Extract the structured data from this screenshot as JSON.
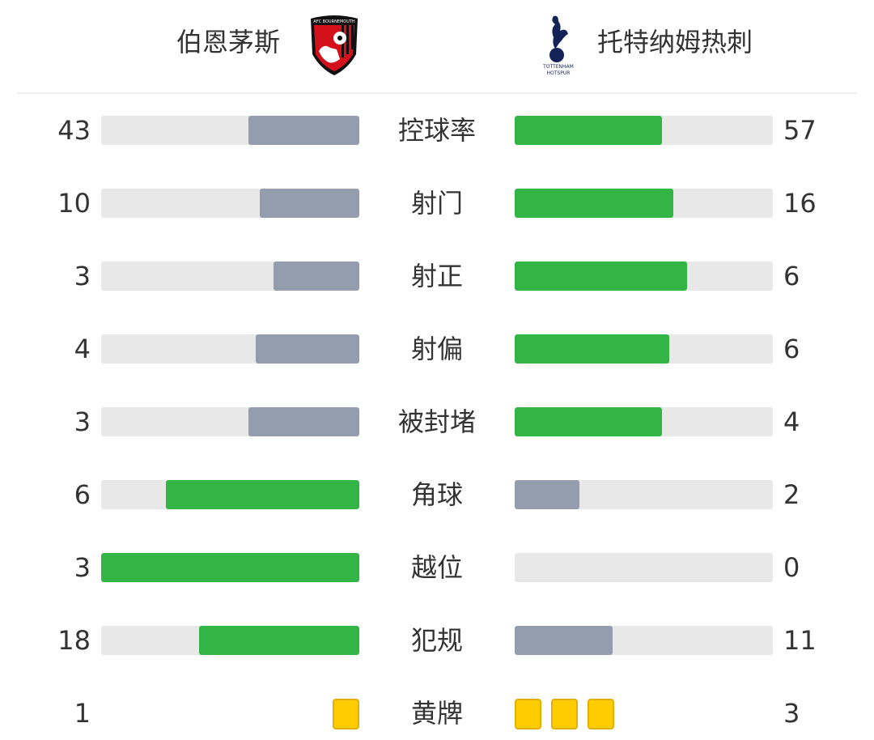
{
  "home": {
    "name": "伯恩茅斯",
    "logo_text": "AFC BOURNEMOUTH"
  },
  "away": {
    "name": "托特纳姆热刺",
    "logo_text": "TOTTENHAM HOTSPUR"
  },
  "colors": {
    "winner": "#33b546",
    "loser": "#949dad",
    "track": "#e8e8e8",
    "card": "#ffcc00"
  },
  "stats": [
    {
      "label": "控球率",
      "home": "43",
      "away": "57"
    },
    {
      "label": "射门",
      "home": "10",
      "away": "16"
    },
    {
      "label": "射正",
      "home": "3",
      "away": "6"
    },
    {
      "label": "射偏",
      "home": "4",
      "away": "6"
    },
    {
      "label": "被封堵",
      "home": "3",
      "away": "4"
    },
    {
      "label": "角球",
      "home": "6",
      "away": "2"
    },
    {
      "label": "越位",
      "home": "3",
      "away": "0"
    },
    {
      "label": "犯规",
      "home": "18",
      "away": "11"
    }
  ],
  "yellow_cards": {
    "label": "黄牌",
    "home": "1",
    "away": "3"
  }
}
